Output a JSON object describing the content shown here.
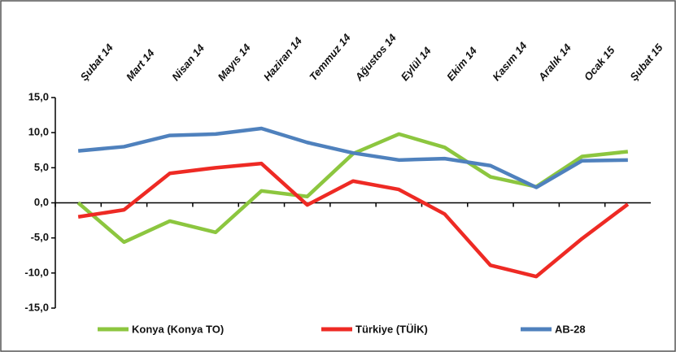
{
  "chart_data": {
    "type": "line",
    "categories": [
      "Şubat 14",
      "Mart 14",
      "Nisan 14",
      "Mayıs 14",
      "Haziran 14",
      "Temmuz 14",
      "Ağustos 14",
      "Eylül 14",
      "Ekim 14",
      "Kasım 14",
      "Aralık 14",
      "Ocak 15",
      "Şubat 15"
    ],
    "series": [
      {
        "name": "Konya (Konya TO)",
        "color": "#8cc63f",
        "values": [
          0.0,
          -5.6,
          -2.6,
          -4.2,
          1.7,
          0.9,
          7.0,
          9.8,
          7.9,
          3.7,
          2.3,
          6.6,
          7.3
        ]
      },
      {
        "name": "Türkiye (TÜİK)",
        "color": "#ee2a24",
        "values": [
          -2.0,
          -1.0,
          4.2,
          5.0,
          5.6,
          -0.3,
          3.1,
          1.9,
          -1.6,
          -8.9,
          -10.5,
          -5.1,
          -0.2
        ]
      },
      {
        "name": "AB-28",
        "color": "#4f81bd",
        "values": [
          7.4,
          8.0,
          9.6,
          9.8,
          10.6,
          8.6,
          7.1,
          6.1,
          6.3,
          5.3,
          2.2,
          6.0,
          6.1
        ]
      }
    ],
    "ylim": [
      -15,
      15
    ],
    "yticks": [
      {
        "value": -15,
        "label": "-15,0"
      },
      {
        "value": -10,
        "label": "-10,0"
      },
      {
        "value": -5,
        "label": "-5,0"
      },
      {
        "value": 0,
        "label": "0,0"
      },
      {
        "value": 5,
        "label": "5,0"
      },
      {
        "value": 10,
        "label": "10,0"
      },
      {
        "value": 15,
        "label": "15,0"
      }
    ],
    "legend": "bottom"
  }
}
